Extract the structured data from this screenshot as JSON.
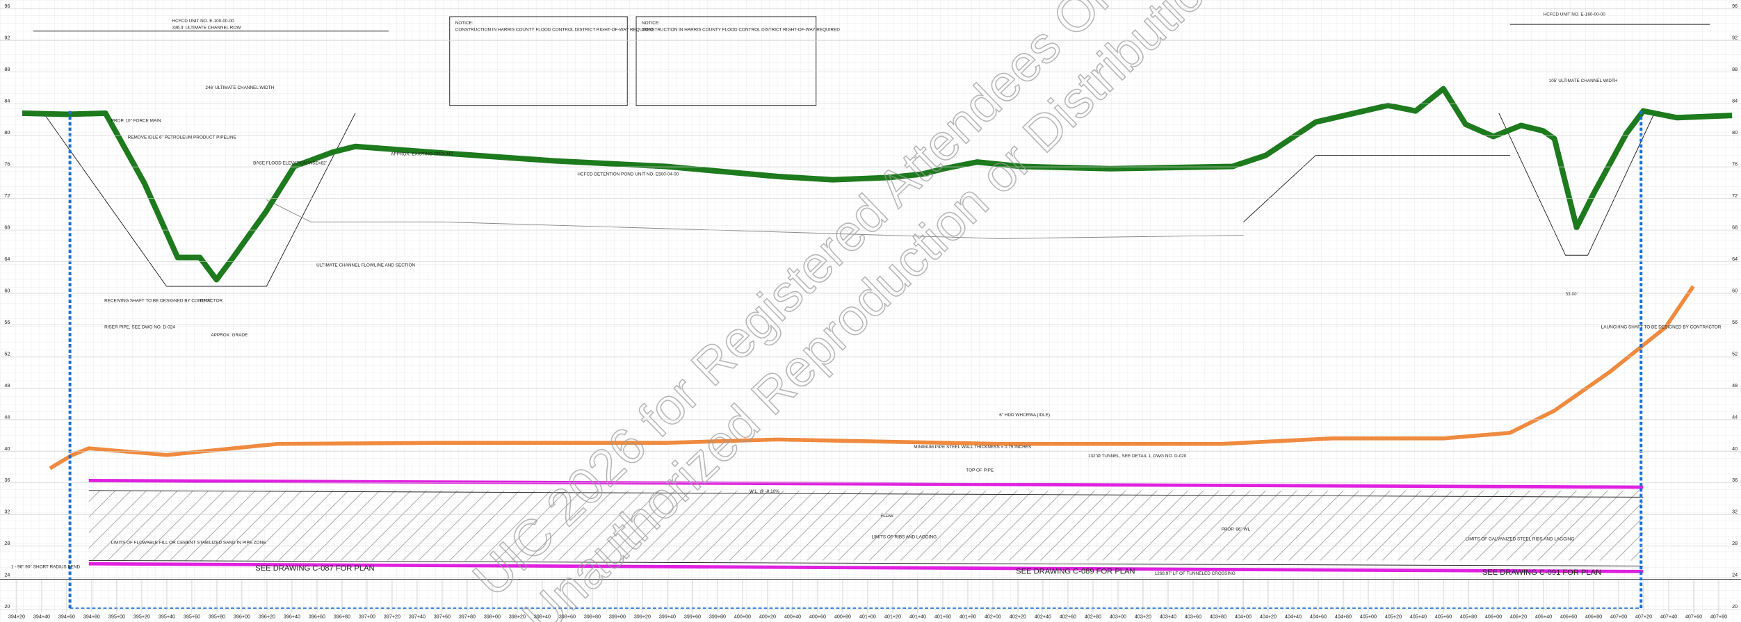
{
  "elevations": [
    96,
    92,
    88,
    84,
    80,
    76,
    72,
    68,
    64,
    60,
    56,
    52,
    48,
    44,
    40,
    36,
    32,
    28,
    24,
    20
  ],
  "stations": [
    "394+20",
    "394+40",
    "394+60",
    "394+80",
    "395+00",
    "395+20",
    "395+40",
    "395+60",
    "395+80",
    "396+00",
    "396+20",
    "396+40",
    "396+60",
    "396+80",
    "397+00",
    "397+20",
    "397+40",
    "397+60",
    "397+80",
    "398+00",
    "398+20",
    "398+40",
    "398+60",
    "398+80",
    "399+00",
    "399+20",
    "399+40",
    "399+60",
    "399+80",
    "400+00",
    "400+20",
    "400+40",
    "400+60",
    "400+80",
    "401+00",
    "401+20",
    "401+40",
    "401+60",
    "401+80",
    "402+00",
    "402+20",
    "402+40",
    "402+60",
    "402+80",
    "403+00",
    "403+20",
    "403+40",
    "403+60",
    "403+80",
    "404+00",
    "404+20",
    "404+40",
    "404+60",
    "404+80",
    "405+00",
    "405+20",
    "405+40",
    "405+60",
    "405+80",
    "406+00",
    "406+20",
    "406+40",
    "406+60",
    "406+80",
    "407+00",
    "407+20",
    "407+40",
    "407+60",
    "407+80"
  ],
  "plan_refs": [
    "SEE DRAWING C-087 FOR PLAN",
    "SEE DRAWING C-089 FOR PLAN",
    "SEE DRAWING C-091 FOR PLAN"
  ],
  "watermark": [
    "UIC 2026 for Registered Attendees Only",
    "Unauthorized Reproduction or Distribution"
  ],
  "notices": [
    {
      "title": "NOTICE:",
      "text": "CONSTRUCTION IN HARRIS COUNTY FLOOD CONTROL DISTRICT RIGHT-OF-WAY REQUIRED"
    },
    {
      "title": "NOTICE:",
      "text": "CONSTRUCTION IN HARRIS COUNTY FLOOD CONTROL DISTRICT RIGHT-OF-WAY REQUIRED"
    }
  ],
  "labels": [
    "HCFCD UNIT NO. E-100-00-00",
    "336.4' ULTIMATE CHANNEL ROW",
    "246' ULTIMATE CHANNEL WIDTH",
    "PROP. 10\" FORCE MAIN",
    "REMOVE IDLE 6\" PETROLEUM PRODUCT PIPELINE",
    "BASE FLOOD ELEVATION WSE=82'",
    "APPROX. EXISTING GROUND",
    "HCFCD DETENTION POND UNIT NO. E500-04-00",
    "ULTIMATE CHANNEL FLOWLINE AND SECTION",
    "APPROX. GRADE",
    "62.00'",
    "RECEIVING SHAFT TO BE DESIGNED BY CONTRACTOR",
    "RISER PIPE, SEE DWG NO. D-024",
    "6\" HDD WHCRWA (IDLE)",
    "MINIMUM PIPE STEEL WALL THICKNESS = 0.75 INCHES",
    "TOP OF PIPE",
    "132\"Ø TUNNEL, SEE DETAIL 1, DWG NO. D-020",
    "W.L. @ -0.10%",
    "FLOW",
    "PROP. 96\" WL",
    "LIMITS OF RIBS AND LAGGING",
    "LIMITS OF FLOWABLE FILL OR CEMENT STABILIZED SAND IN PIPE ZONE",
    "1268.97' LF OF TUNNELED CROSSING",
    "105' ULTIMATE CHANNEL WIDTH",
    "53.00'",
    "LAUNCHING SHAFT TO BE DESIGNED BY CONTRACTOR",
    "1 - 96\" 90° SHORT RADIUS BEND",
    "HCFCD UNIT NO. E-160-00-00",
    "LIMITS OF GALVANIZED STEEL RIBS AND LAGGING"
  ]
}
